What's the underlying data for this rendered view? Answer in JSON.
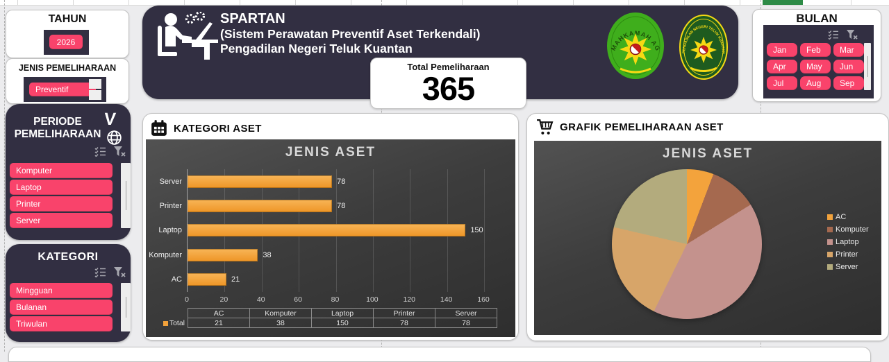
{
  "colors": {
    "accent_pink": "#F9436B",
    "dark_panel": "#322F42",
    "excel_green": "#2E8B47",
    "bar_orange": "#F2A23B",
    "chart_bg_dark": "#3d3d3d",
    "card_white": "#ffffff"
  },
  "filters": {
    "tahun": {
      "label": "TAHUN",
      "value": "2026"
    },
    "jenis": {
      "label": "JENIS PEMELIHARAAN",
      "value": "Preventif"
    },
    "periode": {
      "title_line1": "PERIODE",
      "title_line2": "PEMELIHARAAN",
      "items": [
        "Komputer",
        "Laptop",
        "Printer",
        "Server"
      ]
    },
    "kategori": {
      "title": "KATEGORI",
      "items": [
        "Mingguan",
        "Bulanan",
        "Triwulan"
      ]
    },
    "bulan": {
      "title": "BULAN",
      "items": [
        "Jan",
        "Feb",
        "Mar",
        "Apr",
        "May",
        "Jun",
        "Jul",
        "Aug",
        "Sep"
      ]
    }
  },
  "header": {
    "title": "SPARTAN",
    "subtitle1": "(Sistem Perawatan Preventif Aset Terkendali)",
    "subtitle2": "Pengadilan Negeri Teluk Kuantan",
    "total_label": "Total Pemeliharaan",
    "total_value": "365",
    "logo1_text": "MAHKAMAH AGUNG",
    "logo2_text": "PENGADILAN NEGERI TELUK KUANTAN"
  },
  "sections": {
    "bar": {
      "heading": "KATEGORI ASET"
    },
    "pie": {
      "heading": "GRAFIK PEMELIHARAAN ASET"
    }
  },
  "chart_data": [
    {
      "type": "bar",
      "title": "JENIS ASET",
      "orientation": "horizontal",
      "categories": [
        "AC",
        "Komputer",
        "Laptop",
        "Printer",
        "Server"
      ],
      "values": [
        21,
        38,
        150,
        78,
        78
      ],
      "series_name": "Total",
      "display_order_top_to_bottom": [
        "Server",
        "Printer",
        "Laptop",
        "Komputer",
        "AC"
      ],
      "xlim": [
        0,
        160
      ],
      "xticks": [
        0,
        20,
        40,
        60,
        80,
        100,
        120,
        140,
        160
      ],
      "bar_color": "#F2A23B",
      "grid": true,
      "data_table": {
        "headers": [
          "AC",
          "Komputer",
          "Laptop",
          "Printer",
          "Server"
        ],
        "row_label": "Total",
        "row_values": [
          21,
          38,
          150,
          78,
          78
        ]
      }
    },
    {
      "type": "pie",
      "title": "JENIS ASET",
      "categories": [
        "AC",
        "Komputer",
        "Laptop",
        "Printer",
        "Server"
      ],
      "values": [
        21,
        38,
        150,
        78,
        78
      ],
      "colors": [
        "#F3A33C",
        "#A5694F",
        "#C4928D",
        "#D7A569",
        "#B3AB7D"
      ],
      "legend_position": "right"
    }
  ]
}
